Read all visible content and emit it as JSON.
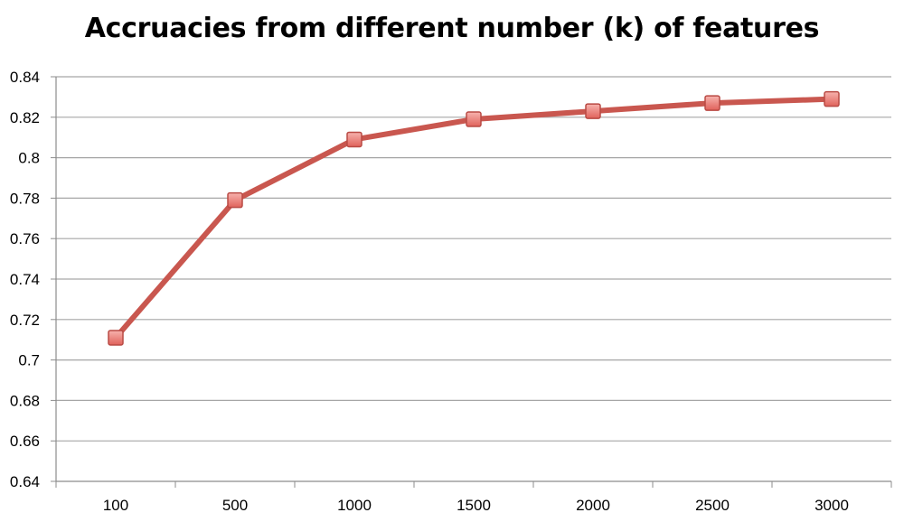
{
  "chart_data": {
    "type": "line",
    "title": "Accruacies from different number (k) of features",
    "xlabel": "",
    "ylabel": "",
    "categories": [
      "100",
      "500",
      "1000",
      "1500",
      "2000",
      "2500",
      "3000"
    ],
    "series": [
      {
        "values": [
          0.711,
          0.779,
          0.809,
          0.819,
          0.823,
          0.827,
          0.829
        ]
      }
    ],
    "ylim": [
      0.64,
      0.84
    ],
    "y_ticks": [
      "0.64",
      "0.66",
      "0.68",
      "0.7",
      "0.72",
      "0.74",
      "0.76",
      "0.78",
      "0.8",
      "0.82",
      "0.84"
    ],
    "grid": true,
    "legend": "none",
    "colors": {
      "line": "#c9574f",
      "marker_fill": "#f08a84",
      "marker_stroke": "#b94a44",
      "grid": "#a6a6a6",
      "axis": "#8c8c8c"
    }
  }
}
